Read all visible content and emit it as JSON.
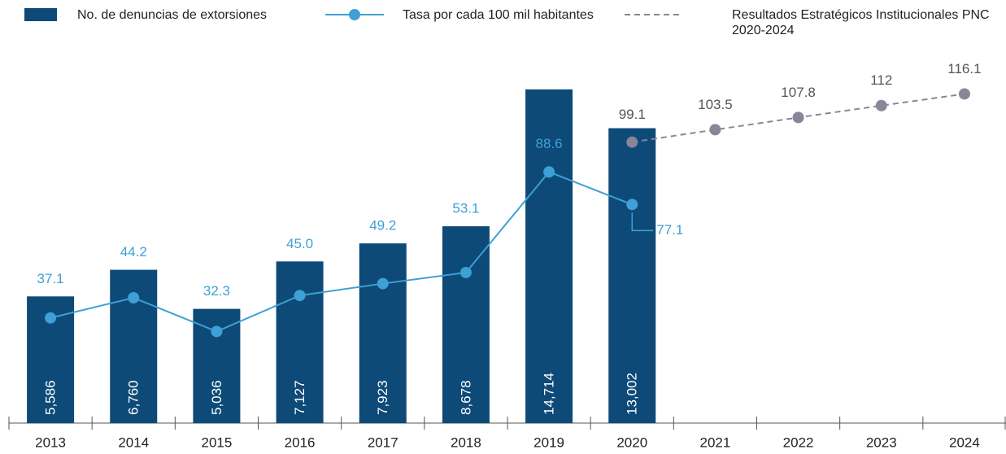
{
  "chart_data": {
    "type": "bar",
    "categories": [
      "2013",
      "2014",
      "2015",
      "2016",
      "2017",
      "2018",
      "2019",
      "2020",
      "2021",
      "2022",
      "2023",
      "2024"
    ],
    "ylim": [
      0,
      16000
    ],
    "y2lim": [
      0,
      128
    ],
    "series": [
      {
        "name": "No. de denuncias de extorsiones",
        "type": "bar",
        "color": "#0d4a78",
        "axis": "y",
        "values": [
          5586,
          6760,
          5036,
          7127,
          7923,
          8678,
          14714,
          13002,
          null,
          null,
          null,
          null
        ],
        "value_labels": [
          "5,586",
          "6,760",
          "5,036",
          "7,127",
          "7,923",
          "8,678",
          "14,714",
          "13,002",
          null,
          null,
          null,
          null
        ]
      },
      {
        "name": "Tasa por cada 100 mil habitantes",
        "type": "line",
        "color": "#3ea0d4",
        "axis": "y2",
        "values": [
          37.1,
          44.2,
          32.3,
          45.0,
          49.2,
          53.1,
          88.6,
          77.1,
          null,
          null,
          null,
          null
        ],
        "value_labels": [
          "37.1",
          "44.2",
          "32.3",
          "45.0",
          "49.2",
          "53.1",
          "88.6",
          "77.1",
          null,
          null,
          null,
          null
        ]
      },
      {
        "name": "Resultados Estratégicos Institucionales PNC 2020-2024",
        "type": "line",
        "dashed": true,
        "color": "#8a8598",
        "axis": "y2",
        "values": [
          null,
          null,
          null,
          null,
          null,
          null,
          null,
          99.1,
          103.5,
          107.8,
          112,
          116.1
        ]
      }
    ]
  }
}
